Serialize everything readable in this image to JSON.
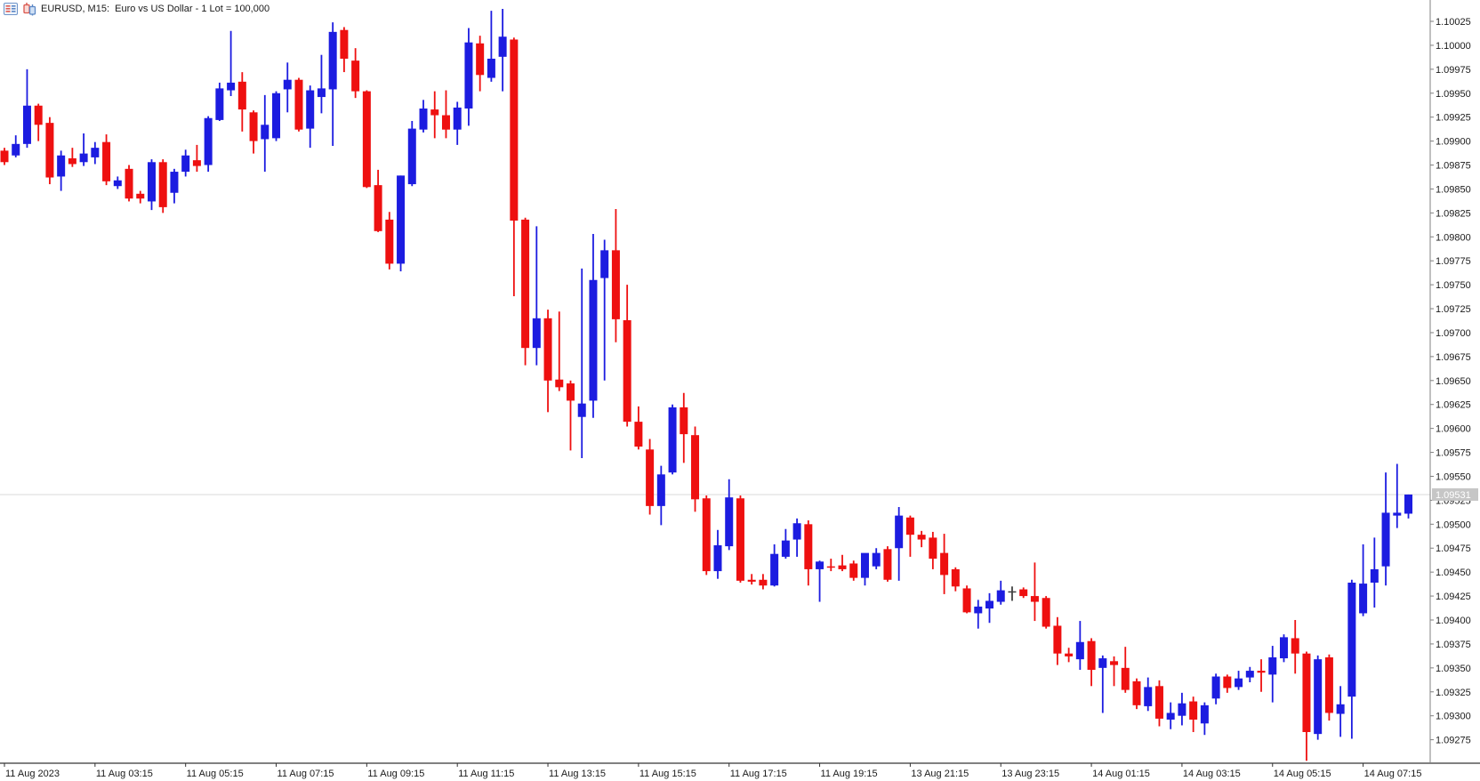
{
  "header": {
    "title": "EURUSD, M15:  Euro vs US Dollar - 1 Lot = 100,000",
    "icons": [
      "quotes-list-icon",
      "candlestick-chart-icon"
    ]
  },
  "chart_data": {
    "type": "candlestick",
    "title": "EURUSD, M15:  Euro vs US Dollar - 1 Lot = 100,000",
    "symbol": "EURUSD",
    "timeframe": "M15",
    "up_color": "#1c1ce0",
    "down_color": "#ee1010",
    "doji_color": "#404040",
    "background": "#ffffff",
    "axis_color": "#808080",
    "text_color": "#1a1a1a",
    "current_price": 1.09531,
    "current_price_label": {
      "value": "1.09531",
      "bg": "#c6c6c6",
      "fg": "#ffffff",
      "line_color": "#d8d8d8"
    },
    "y_axis": {
      "max": 1.10025,
      "min": 1.09275,
      "tick_step": 0.00025,
      "labels": [
        "1.10025",
        "1.10000",
        "1.09975",
        "1.09950",
        "1.09925",
        "1.09900",
        "1.09875",
        "1.09850",
        "1.09825",
        "1.09800",
        "1.09775",
        "1.09750",
        "1.09725",
        "1.09700",
        "1.09675",
        "1.09650",
        "1.09625",
        "1.09600",
        "1.09575",
        "1.09550",
        "1.09525",
        "1.09500",
        "1.09475",
        "1.09450",
        "1.09425",
        "1.09400",
        "1.09375",
        "1.09350",
        "1.09325",
        "1.09300",
        "1.09275"
      ]
    },
    "x_axis": {
      "labels": [
        "11 Aug 2023",
        "11 Aug 03:15",
        "11 Aug 05:15",
        "11 Aug 07:15",
        "11 Aug 09:15",
        "11 Aug 11:15",
        "11 Aug 13:15",
        "11 Aug 15:15",
        "11 Aug 17:15",
        "11 Aug 19:15",
        "13 Aug 21:15",
        "13 Aug 23:15",
        "14 Aug 01:15",
        "14 Aug 03:15",
        "14 Aug 05:15",
        "14 Aug 07:15"
      ],
      "candles_per_label": 8
    },
    "candles": [
      [
        1.0989,
        1.09893,
        1.09875,
        1.09878
      ],
      [
        1.09885,
        1.09906,
        1.09883,
        1.09897
      ],
      [
        1.09897,
        1.09975,
        1.09893,
        1.09937
      ],
      [
        1.09937,
        1.09939,
        1.099,
        1.09917
      ],
      [
        1.09919,
        1.09925,
        1.09855,
        1.09862
      ],
      [
        1.09863,
        1.0989,
        1.09848,
        1.09885
      ],
      [
        1.09882,
        1.09893,
        1.09873,
        1.09876
      ],
      [
        1.09878,
        1.09908,
        1.09874,
        1.09887
      ],
      [
        1.09883,
        1.09899,
        1.09876,
        1.09893
      ],
      [
        1.09899,
        1.09907,
        1.09854,
        1.09858
      ],
      [
        1.09853,
        1.09863,
        1.0985,
        1.09859
      ],
      [
        1.09871,
        1.09875,
        1.09837,
        1.0984
      ],
      [
        1.09845,
        1.09848,
        1.09835,
        1.0984
      ],
      [
        1.09837,
        1.09881,
        1.09828,
        1.09878
      ],
      [
        1.09878,
        1.09881,
        1.09825,
        1.09831
      ],
      [
        1.09846,
        1.09871,
        1.09835,
        1.09868
      ],
      [
        1.09868,
        1.09891,
        1.09863,
        1.09885
      ],
      [
        1.0988,
        1.09896,
        1.09868,
        1.09874
      ],
      [
        1.09875,
        1.09926,
        1.09868,
        1.09924
      ],
      [
        1.09922,
        1.09961,
        1.09921,
        1.09955
      ],
      [
        1.09953,
        1.10015,
        1.09947,
        1.09961
      ],
      [
        1.09962,
        1.09972,
        1.0991,
        1.09933
      ],
      [
        1.0993,
        1.09932,
        1.09887,
        1.099
      ],
      [
        1.09902,
        1.09948,
        1.09868,
        1.09917
      ],
      [
        1.09903,
        1.09952,
        1.099,
        1.0995
      ],
      [
        1.09954,
        1.09982,
        1.0993,
        1.09964
      ],
      [
        1.09964,
        1.09966,
        1.0991,
        1.09912
      ],
      [
        1.09913,
        1.09958,
        1.09893,
        1.09953
      ],
      [
        1.09946,
        1.0999,
        1.09929,
        1.09955
      ],
      [
        1.09954,
        1.10024,
        1.09895,
        1.10014
      ],
      [
        1.10016,
        1.10019,
        1.09972,
        1.09986
      ],
      [
        1.09984,
        1.09997,
        1.09945,
        1.09952
      ],
      [
        1.09952,
        1.09953,
        1.09851,
        1.09852
      ],
      [
        1.09854,
        1.0987,
        1.09805,
        1.09806
      ],
      [
        1.09818,
        1.09826,
        1.09766,
        1.09772
      ],
      [
        1.09772,
        1.09864,
        1.09764,
        1.09864
      ],
      [
        1.09855,
        1.09921,
        1.09853,
        1.09913
      ],
      [
        1.09912,
        1.09943,
        1.09909,
        1.09934
      ],
      [
        1.09933,
        1.09952,
        1.09903,
        1.09927
      ],
      [
        1.09927,
        1.09953,
        1.09903,
        1.09912
      ],
      [
        1.09912,
        1.09941,
        1.09896,
        1.09935
      ],
      [
        1.09934,
        1.10018,
        1.09916,
        1.10003
      ],
      [
        1.10002,
        1.1001,
        1.09952,
        1.09969
      ],
      [
        1.09966,
        1.10036,
        1.09962,
        1.09986
      ],
      [
        1.09988,
        1.10038,
        1.09952,
        1.10009
      ],
      [
        1.10006,
        1.10008,
        1.09738,
        1.09817
      ],
      [
        1.09818,
        1.0982,
        1.09666,
        1.09684
      ],
      [
        1.09684,
        1.09811,
        1.09666,
        1.09715
      ],
      [
        1.09715,
        1.09724,
        1.09617,
        1.0965
      ],
      [
        1.09651,
        1.09722,
        1.09639,
        1.09643
      ],
      [
        1.09647,
        1.0965,
        1.09577,
        1.09629
      ],
      [
        1.09612,
        1.09767,
        1.09569,
        1.09626
      ],
      [
        1.09629,
        1.09803,
        1.09611,
        1.09755
      ],
      [
        1.09757,
        1.09797,
        1.0965,
        1.09786
      ],
      [
        1.09786,
        1.09829,
        1.0969,
        1.09714
      ],
      [
        1.09713,
        1.0975,
        1.09602,
        1.09607
      ],
      [
        1.09607,
        1.09623,
        1.09578,
        1.09581
      ],
      [
        1.09578,
        1.09589,
        1.0951,
        1.09519
      ],
      [
        1.09519,
        1.09561,
        1.09499,
        1.09552
      ],
      [
        1.09554,
        1.09625,
        1.09552,
        1.09622
      ],
      [
        1.09622,
        1.09637,
        1.09564,
        1.09594
      ],
      [
        1.09593,
        1.09602,
        1.09513,
        1.09526
      ],
      [
        1.09527,
        1.0953,
        1.09447,
        1.09451
      ],
      [
        1.09451,
        1.09494,
        1.09443,
        1.09478
      ],
      [
        1.09477,
        1.09547,
        1.09473,
        1.09528
      ],
      [
        1.09527,
        1.0953,
        1.09439,
        1.09441
      ],
      [
        1.09442,
        1.09448,
        1.09437,
        1.0944
      ],
      [
        1.09442,
        1.09448,
        1.09432,
        1.09436
      ],
      [
        1.09436,
        1.09479,
        1.09435,
        1.09469
      ],
      [
        1.09466,
        1.09495,
        1.09464,
        1.09483
      ],
      [
        1.09484,
        1.09506,
        1.09466,
        1.09501
      ],
      [
        1.095,
        1.09504,
        1.09436,
        1.09453
      ],
      [
        1.09453,
        1.09462,
        1.09419,
        1.09461
      ],
      [
        1.09456,
        1.09464,
        1.09451,
        1.09455
      ],
      [
        1.09457,
        1.09468,
        1.09451,
        1.09453
      ],
      [
        1.09459,
        1.09462,
        1.09441,
        1.09444
      ],
      [
        1.09444,
        1.09468,
        1.09436,
        1.0947
      ],
      [
        1.09456,
        1.09475,
        1.09453,
        1.0947
      ],
      [
        1.09474,
        1.09477,
        1.0944,
        1.09442
      ],
      [
        1.09475,
        1.09518,
        1.09441,
        1.09509
      ],
      [
        1.09507,
        1.09509,
        1.09466,
        1.09489
      ],
      [
        1.09489,
        1.09493,
        1.09476,
        1.09484
      ],
      [
        1.09486,
        1.09492,
        1.09453,
        1.09464
      ],
      [
        1.0947,
        1.0949,
        1.09427,
        1.09447
      ],
      [
        1.09453,
        1.09455,
        1.0943,
        1.09435
      ],
      [
        1.09433,
        1.09436,
        1.09407,
        1.09408
      ],
      [
        1.09407,
        1.09421,
        1.09391,
        1.09414
      ],
      [
        1.09412,
        1.09428,
        1.09397,
        1.0942
      ],
      [
        1.09419,
        1.09441,
        1.09416,
        1.09431
      ],
      [
        1.0943,
        1.09435,
        1.0942,
        1.0943
      ],
      [
        1.09432,
        1.09434,
        1.09423,
        1.09425
      ],
      [
        1.09425,
        1.0946,
        1.09399,
        1.09419
      ],
      [
        1.09423,
        1.09425,
        1.09391,
        1.09393
      ],
      [
        1.09394,
        1.09403,
        1.09353,
        1.09365
      ],
      [
        1.09365,
        1.09371,
        1.09356,
        1.09362
      ],
      [
        1.09359,
        1.09399,
        1.09348,
        1.09377
      ],
      [
        1.09378,
        1.09381,
        1.09331,
        1.09348
      ],
      [
        1.0935,
        1.09363,
        1.09303,
        1.0936
      ],
      [
        1.09357,
        1.09362,
        1.09331,
        1.09353
      ],
      [
        1.0935,
        1.09372,
        1.09324,
        1.09327
      ],
      [
        1.09336,
        1.09339,
        1.09307,
        1.09311
      ],
      [
        1.0931,
        1.0934,
        1.09305,
        1.0933
      ],
      [
        1.09331,
        1.09337,
        1.09289,
        1.09297
      ],
      [
        1.09296,
        1.09314,
        1.09286,
        1.09303
      ],
      [
        1.093,
        1.09324,
        1.0929,
        1.09313
      ],
      [
        1.09315,
        1.0932,
        1.09283,
        1.09296
      ],
      [
        1.09292,
        1.09314,
        1.0928,
        1.09311
      ],
      [
        1.09318,
        1.09344,
        1.09312,
        1.09341
      ],
      [
        1.09341,
        1.09343,
        1.09324,
        1.09329
      ],
      [
        1.0933,
        1.09347,
        1.09327,
        1.09339
      ],
      [
        1.0934,
        1.09351,
        1.09335,
        1.09347
      ],
      [
        1.09347,
        1.09359,
        1.09325,
        1.09345
      ],
      [
        1.09343,
        1.09373,
        1.09314,
        1.09361
      ],
      [
        1.0936,
        1.09385,
        1.09356,
        1.09382
      ],
      [
        1.09381,
        1.094,
        1.09344,
        1.09365
      ],
      [
        1.09365,
        1.09367,
        1.09253,
        1.09283
      ],
      [
        1.09281,
        1.09363,
        1.09275,
        1.09359
      ],
      [
        1.09361,
        1.09364,
        1.09295,
        1.09303
      ],
      [
        1.09302,
        1.09331,
        1.09278,
        1.09312
      ],
      [
        1.0932,
        1.09442,
        1.09276,
        1.09439
      ],
      [
        1.09407,
        1.09479,
        1.09404,
        1.09438
      ],
      [
        1.09439,
        1.09486,
        1.09413,
        1.09453
      ],
      [
        1.09456,
        1.09554,
        1.09436,
        1.09512
      ],
      [
        1.09509,
        1.09563,
        1.09496,
        1.09512
      ],
      [
        1.09511,
        1.09531,
        1.09506,
        1.09531
      ]
    ]
  }
}
